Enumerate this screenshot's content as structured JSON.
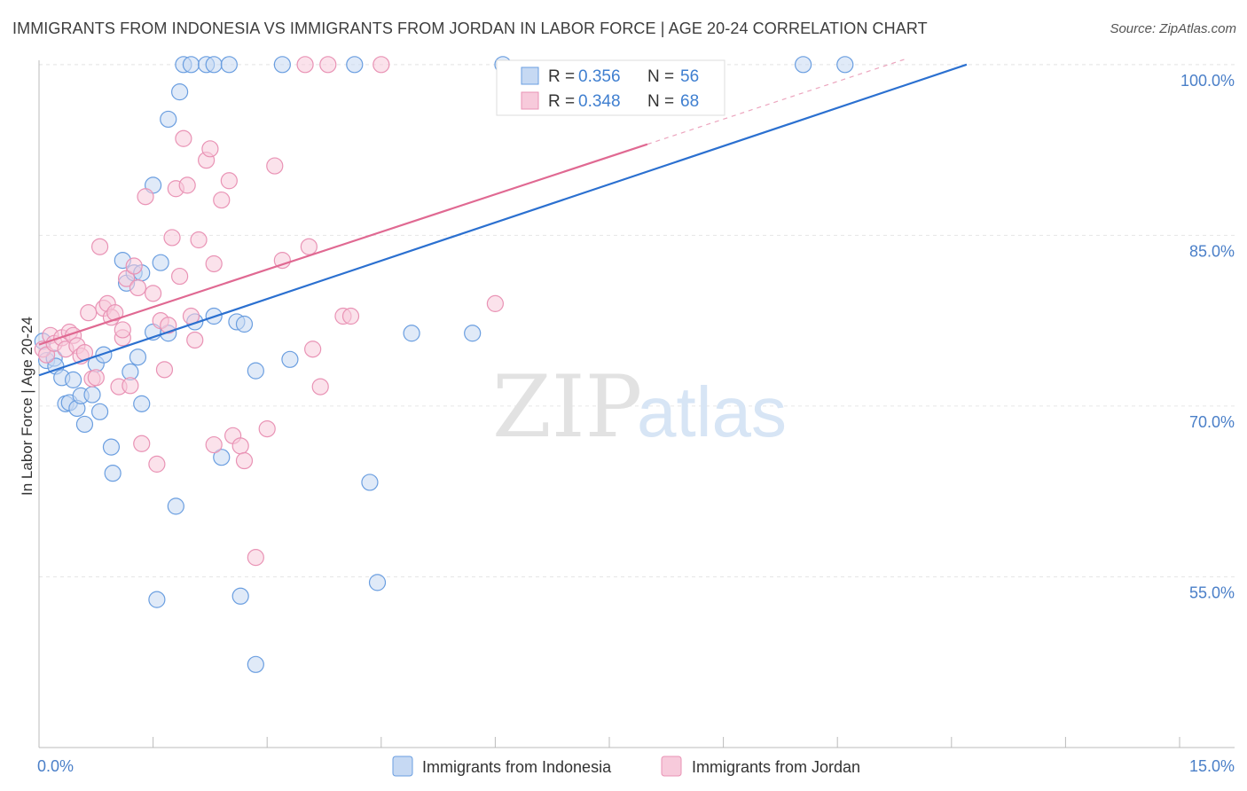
{
  "title": "IMMIGRANTS FROM INDONESIA VS IMMIGRANTS FROM JORDAN IN LABOR FORCE | AGE 20-24 CORRELATION CHART",
  "source": "Source: ZipAtlas.com",
  "watermark": {
    "zip": "ZIP",
    "atlas": "atlas"
  },
  "chart_data": {
    "type": "scatter",
    "ylabel": "In Labor Force | Age 20-24",
    "xlim": [
      0,
      15
    ],
    "ylim": [
      40,
      101
    ],
    "x_tick_labels": [
      "0.0%",
      "15.0%"
    ],
    "y_ticks": [
      {
        "value": 100,
        "label": "100.0%"
      },
      {
        "value": 85,
        "label": "85.0%"
      },
      {
        "value": 70,
        "label": "70.0%"
      },
      {
        "value": 55,
        "label": "55.0%"
      }
    ],
    "grid": true,
    "legend_position": "top-center",
    "series": [
      {
        "name": "Immigrants from Indonesia",
        "color": "#6a9ee0",
        "fill": "#c6d9f3",
        "line_color": "#2b70d0",
        "R": "0.356",
        "N": "56",
        "trend": {
          "x0": 0.0,
          "y0": 72.7,
          "x1": 12.2,
          "y1": 100.0
        },
        "points": [
          [
            0.05,
            75.7
          ],
          [
            0.1,
            74.0
          ],
          [
            0.2,
            74.2
          ],
          [
            0.22,
            73.5
          ],
          [
            0.3,
            72.5
          ],
          [
            0.35,
            70.2
          ],
          [
            0.4,
            70.3
          ],
          [
            0.45,
            72.3
          ],
          [
            0.5,
            69.8
          ],
          [
            0.55,
            70.9
          ],
          [
            0.6,
            68.4
          ],
          [
            0.7,
            71.0
          ],
          [
            0.75,
            73.7
          ],
          [
            0.8,
            69.5
          ],
          [
            0.85,
            74.5
          ],
          [
            0.95,
            66.4
          ],
          [
            0.97,
            64.1
          ],
          [
            1.1,
            82.8
          ],
          [
            1.15,
            80.8
          ],
          [
            1.2,
            73.0
          ],
          [
            1.25,
            81.7
          ],
          [
            1.3,
            74.3
          ],
          [
            1.35,
            81.7
          ],
          [
            1.35,
            70.2
          ],
          [
            1.5,
            76.5
          ],
          [
            1.5,
            89.4
          ],
          [
            1.55,
            53.0
          ],
          [
            1.6,
            82.6
          ],
          [
            1.7,
            76.4
          ],
          [
            1.7,
            95.2
          ],
          [
            1.8,
            61.2
          ],
          [
            1.85,
            97.6
          ],
          [
            1.9,
            100.0
          ],
          [
            2.0,
            100.0
          ],
          [
            2.05,
            77.4
          ],
          [
            2.2,
            100.0
          ],
          [
            2.3,
            77.9
          ],
          [
            2.3,
            100.0
          ],
          [
            2.4,
            65.5
          ],
          [
            2.5,
            100.0
          ],
          [
            2.6,
            77.4
          ],
          [
            2.65,
            53.3
          ],
          [
            2.7,
            77.2
          ],
          [
            2.85,
            73.1
          ],
          [
            2.85,
            47.3
          ],
          [
            3.2,
            100.0
          ],
          [
            3.3,
            74.1
          ],
          [
            4.15,
            100.0
          ],
          [
            4.35,
            63.3
          ],
          [
            4.45,
            54.5
          ],
          [
            4.9,
            76.4
          ],
          [
            5.7,
            76.4
          ],
          [
            6.1,
            100.0
          ],
          [
            10.05,
            100.0
          ],
          [
            10.6,
            100.0
          ]
        ]
      },
      {
        "name": "Immigrants from Jordan",
        "color": "#e993b5",
        "fill": "#f7cadb",
        "line_color": "#e06992",
        "R": "0.348",
        "N": "68",
        "trend": {
          "x0": 0.0,
          "y0": 75.4,
          "x1": 8.0,
          "y1": 93.0
        },
        "trend_dashed": {
          "x0": 8.0,
          "y0": 93.0,
          "x1": 11.4,
          "y1": 100.5
        },
        "points": [
          [
            0.05,
            75.0
          ],
          [
            0.1,
            74.5
          ],
          [
            0.15,
            76.2
          ],
          [
            0.2,
            75.5
          ],
          [
            0.3,
            76.0
          ],
          [
            0.35,
            75.0
          ],
          [
            0.4,
            76.5
          ],
          [
            0.45,
            76.2
          ],
          [
            0.5,
            75.3
          ],
          [
            0.55,
            74.4
          ],
          [
            0.6,
            74.7
          ],
          [
            0.65,
            78.2
          ],
          [
            0.7,
            72.4
          ],
          [
            0.75,
            72.5
          ],
          [
            0.8,
            84.0
          ],
          [
            0.85,
            78.6
          ],
          [
            0.9,
            79.0
          ],
          [
            0.95,
            77.8
          ],
          [
            1.0,
            78.2
          ],
          [
            1.05,
            71.7
          ],
          [
            1.1,
            76.0
          ],
          [
            1.1,
            76.7
          ],
          [
            1.15,
            81.2
          ],
          [
            1.2,
            71.8
          ],
          [
            1.25,
            82.3
          ],
          [
            1.3,
            80.4
          ],
          [
            1.35,
            66.7
          ],
          [
            1.4,
            88.4
          ],
          [
            1.5,
            79.9
          ],
          [
            1.55,
            64.9
          ],
          [
            1.6,
            77.5
          ],
          [
            1.65,
            73.2
          ],
          [
            1.7,
            77.1
          ],
          [
            1.75,
            84.8
          ],
          [
            1.8,
            89.1
          ],
          [
            1.85,
            81.4
          ],
          [
            1.9,
            93.5
          ],
          [
            1.95,
            89.4
          ],
          [
            2.0,
            77.9
          ],
          [
            2.05,
            75.8
          ],
          [
            2.1,
            84.6
          ],
          [
            2.2,
            91.6
          ],
          [
            2.25,
            92.6
          ],
          [
            2.3,
            82.5
          ],
          [
            2.3,
            66.6
          ],
          [
            2.4,
            88.1
          ],
          [
            2.5,
            89.8
          ],
          [
            2.55,
            67.4
          ],
          [
            2.65,
            66.5
          ],
          [
            2.7,
            65.2
          ],
          [
            2.85,
            56.7
          ],
          [
            3.0,
            68.0
          ],
          [
            3.1,
            91.1
          ],
          [
            3.2,
            82.8
          ],
          [
            3.5,
            100.0
          ],
          [
            3.55,
            84.0
          ],
          [
            3.6,
            75.0
          ],
          [
            3.7,
            71.7
          ],
          [
            3.8,
            100.0
          ],
          [
            4.0,
            77.9
          ],
          [
            4.1,
            77.9
          ],
          [
            4.5,
            100.0
          ],
          [
            6.0,
            79.0
          ]
        ]
      }
    ]
  },
  "bottom_legend": [
    "Immigrants from Indonesia",
    "Immigrants from Jordan"
  ]
}
